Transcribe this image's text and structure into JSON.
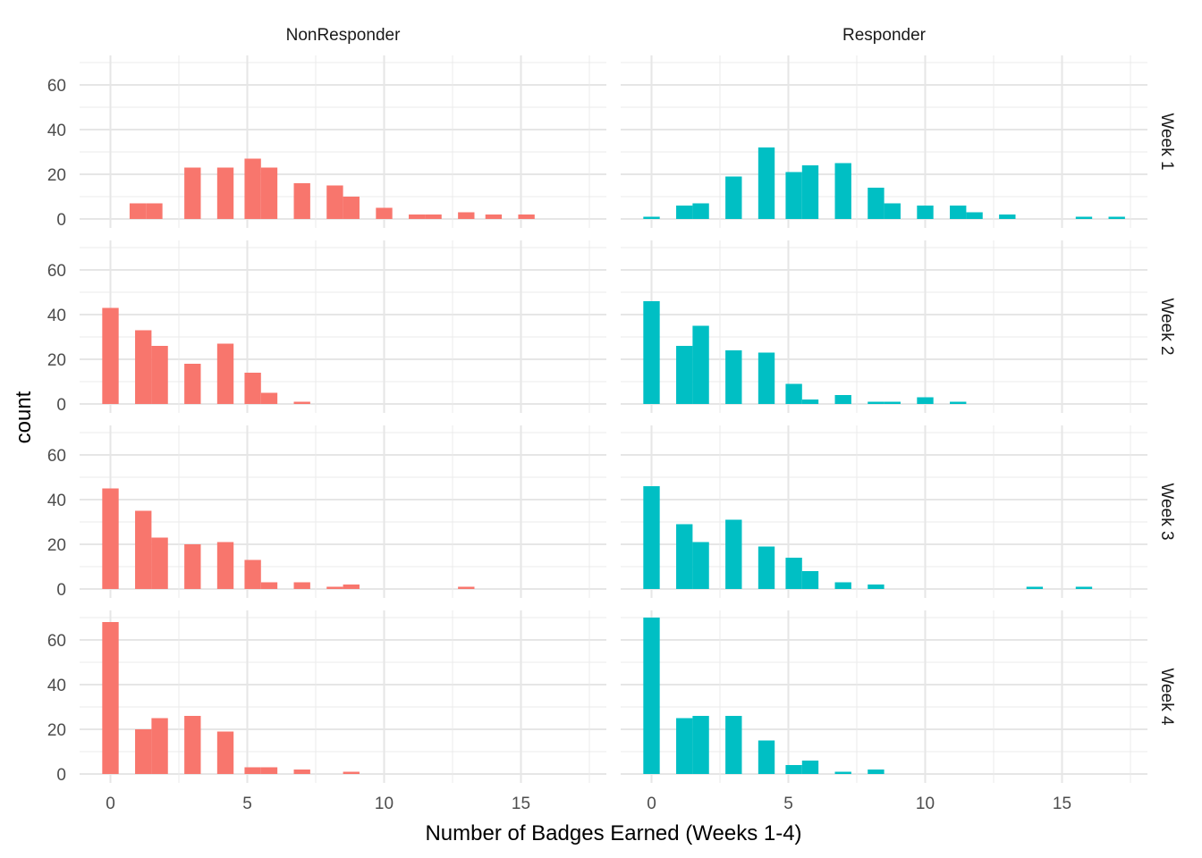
{
  "chart_data": {
    "type": "bar",
    "subtype": "faceted-histogram",
    "xlabel": "Number of Badges Earned (Weeks 1-4)",
    "ylabel": "count",
    "xlim": [
      -0.5,
      17.5
    ],
    "ylim": [
      0,
      70
    ],
    "x_ticks": [
      0,
      5,
      10,
      15
    ],
    "y_ticks": [
      0,
      20,
      40,
      60
    ],
    "bin_width": 0.6,
    "grid": true,
    "legend": "none",
    "columns": [
      "NonResponder",
      "Responder"
    ],
    "rows": [
      "Week 1",
      "Week 2",
      "Week 3",
      "Week 4"
    ],
    "colors": {
      "NonResponder": "#F8766D",
      "Responder": "#00BFC4"
    },
    "panels": [
      {
        "row": "Week 1",
        "column": "NonResponder",
        "x": [
          1,
          1.6,
          3,
          4.2,
          5.2,
          5.8,
          7,
          8.2,
          8.8,
          10,
          11.2,
          11.8,
          13,
          14,
          15.2
        ],
        "counts": [
          7,
          7,
          23,
          23,
          27,
          23,
          16,
          15,
          10,
          5,
          2,
          2,
          3,
          2,
          2
        ]
      },
      {
        "row": "Week 1",
        "column": "Responder",
        "x": [
          0,
          1.2,
          1.8,
          3,
          4.2,
          5.2,
          5.8,
          7,
          8.2,
          8.8,
          10,
          11.2,
          11.8,
          13,
          15.8,
          17
        ],
        "counts": [
          1,
          6,
          7,
          19,
          32,
          21,
          24,
          25,
          14,
          7,
          6,
          6,
          3,
          2,
          1,
          1
        ]
      },
      {
        "row": "Week 2",
        "column": "NonResponder",
        "x": [
          0,
          1.2,
          1.8,
          3,
          4.2,
          5.2,
          5.8,
          7
        ],
        "counts": [
          43,
          33,
          26,
          18,
          27,
          14,
          5,
          1
        ]
      },
      {
        "row": "Week 2",
        "column": "Responder",
        "x": [
          0,
          1.2,
          1.8,
          3,
          4.2,
          5.2,
          5.8,
          7,
          8.2,
          8.8,
          10,
          11.2
        ],
        "counts": [
          46,
          26,
          35,
          24,
          23,
          9,
          2,
          4,
          1,
          1,
          3,
          1
        ]
      },
      {
        "row": "Week 3",
        "column": "NonResponder",
        "x": [
          0,
          1.2,
          1.8,
          3,
          4.2,
          5.2,
          5.8,
          7,
          8.2,
          8.8,
          13
        ],
        "counts": [
          45,
          35,
          23,
          20,
          21,
          13,
          3,
          3,
          1,
          2,
          1
        ]
      },
      {
        "row": "Week 3",
        "column": "Responder",
        "x": [
          0,
          1.2,
          1.8,
          3,
          4.2,
          5.2,
          5.8,
          7,
          8.2,
          14,
          15.8
        ],
        "counts": [
          46,
          29,
          21,
          31,
          19,
          14,
          8,
          3,
          2,
          1,
          1
        ]
      },
      {
        "row": "Week 4",
        "column": "NonResponder",
        "x": [
          0,
          1.2,
          1.8,
          3,
          4.2,
          5.2,
          5.8,
          7,
          8.8
        ],
        "counts": [
          68,
          20,
          25,
          26,
          19,
          3,
          3,
          2,
          1
        ]
      },
      {
        "row": "Week 4",
        "column": "Responder",
        "x": [
          0,
          1.2,
          1.8,
          3,
          4.2,
          5.2,
          5.8,
          7,
          8.2
        ],
        "counts": [
          70,
          25,
          26,
          26,
          15,
          4,
          6,
          1,
          2
        ]
      }
    ]
  }
}
